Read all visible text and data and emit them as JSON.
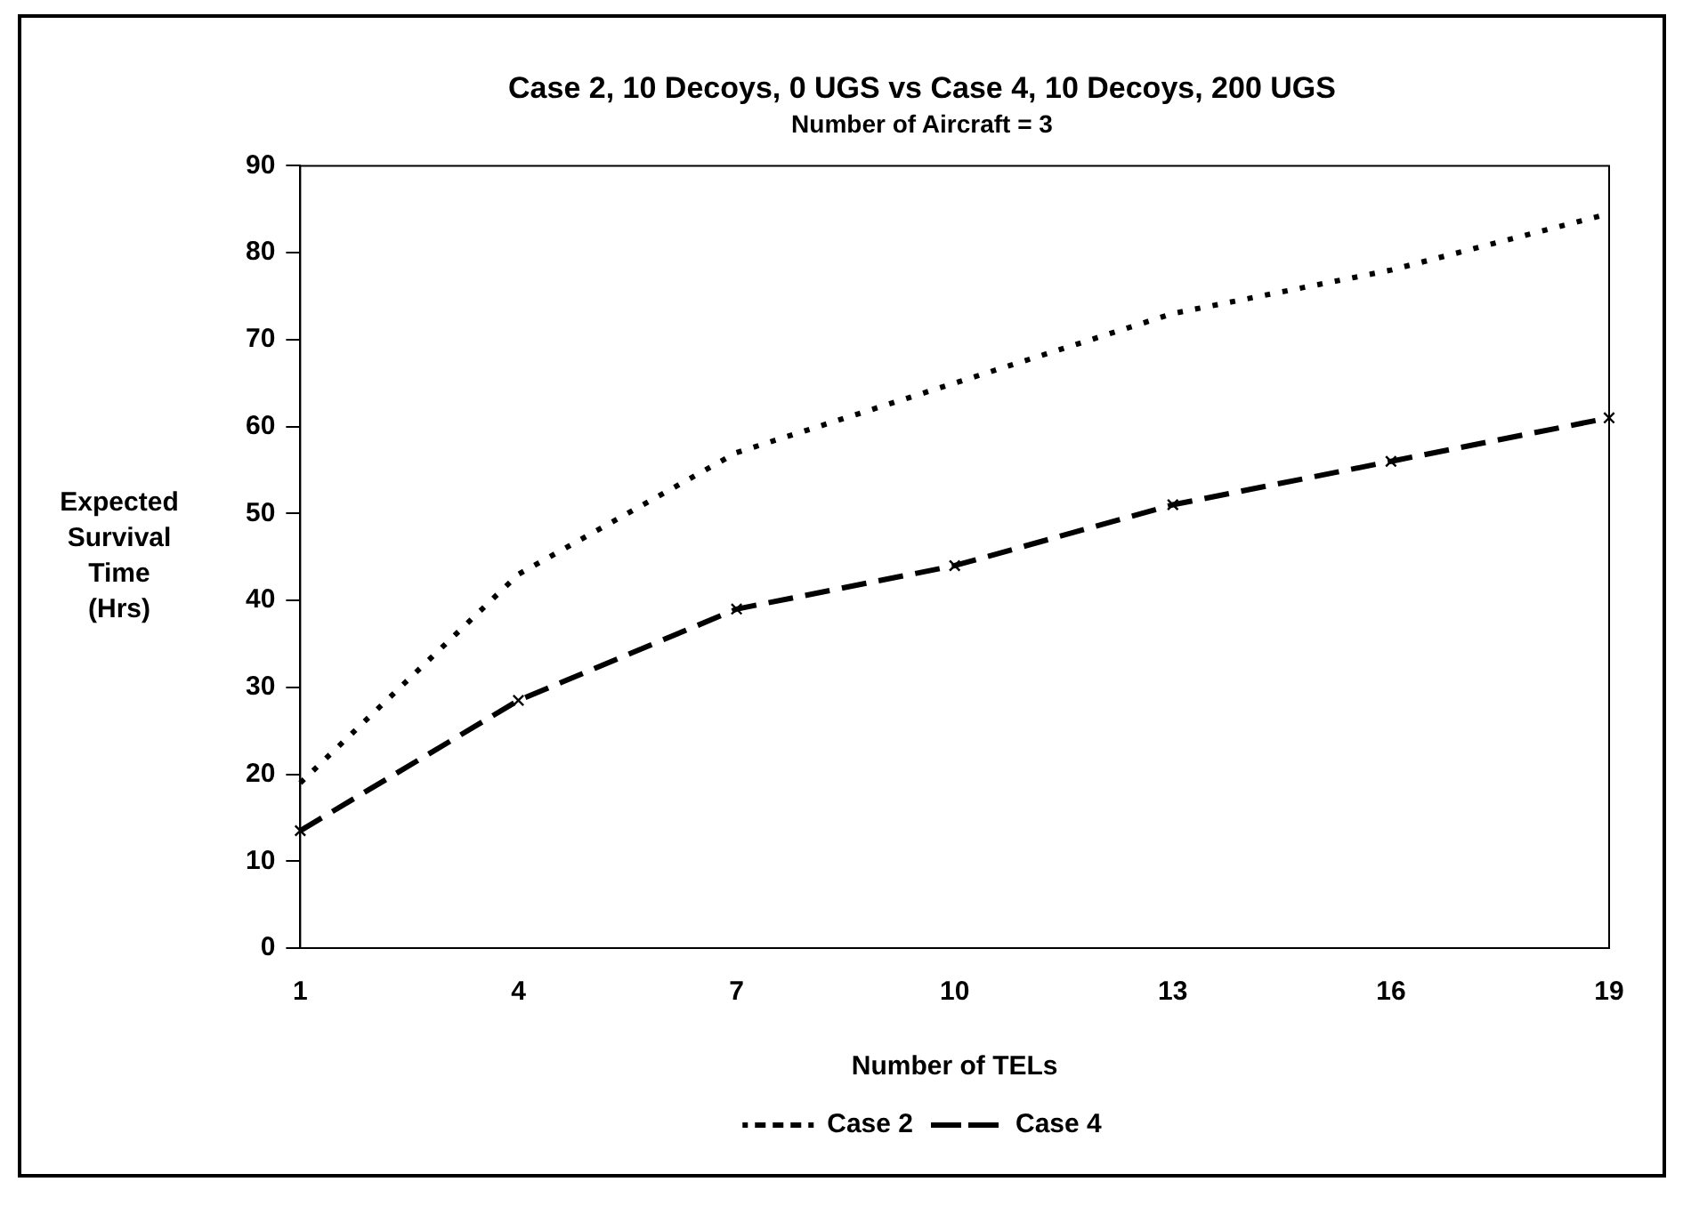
{
  "chart_data": {
    "type": "line",
    "title": "Case 2, 10 Decoys, 0 UGS vs Case 4, 10 Decoys, 200 UGS",
    "subtitle": "Number of Aircraft = 3",
    "xlabel": "Number of TELs",
    "ylabel": "Expected Survival Time (Hrs)",
    "categories": [
      "1",
      "4",
      "7",
      "10",
      "13",
      "16",
      "19"
    ],
    "series": [
      {
        "name": "Case 2",
        "color": "#000000",
        "line_style": "dotted",
        "marker": "none",
        "values": [
          19,
          43,
          57,
          65,
          73,
          78,
          84.5
        ]
      },
      {
        "name": "Case 4",
        "color": "#000000",
        "line_style": "dashed",
        "marker": "cross",
        "values": [
          13.5,
          28.5,
          39,
          44,
          51,
          56,
          61
        ]
      }
    ],
    "ylim": [
      0,
      90
    ],
    "yticks": [
      0,
      10,
      20,
      30,
      40,
      50,
      60,
      70,
      80,
      90
    ],
    "grid": false,
    "legend": "bottom"
  }
}
